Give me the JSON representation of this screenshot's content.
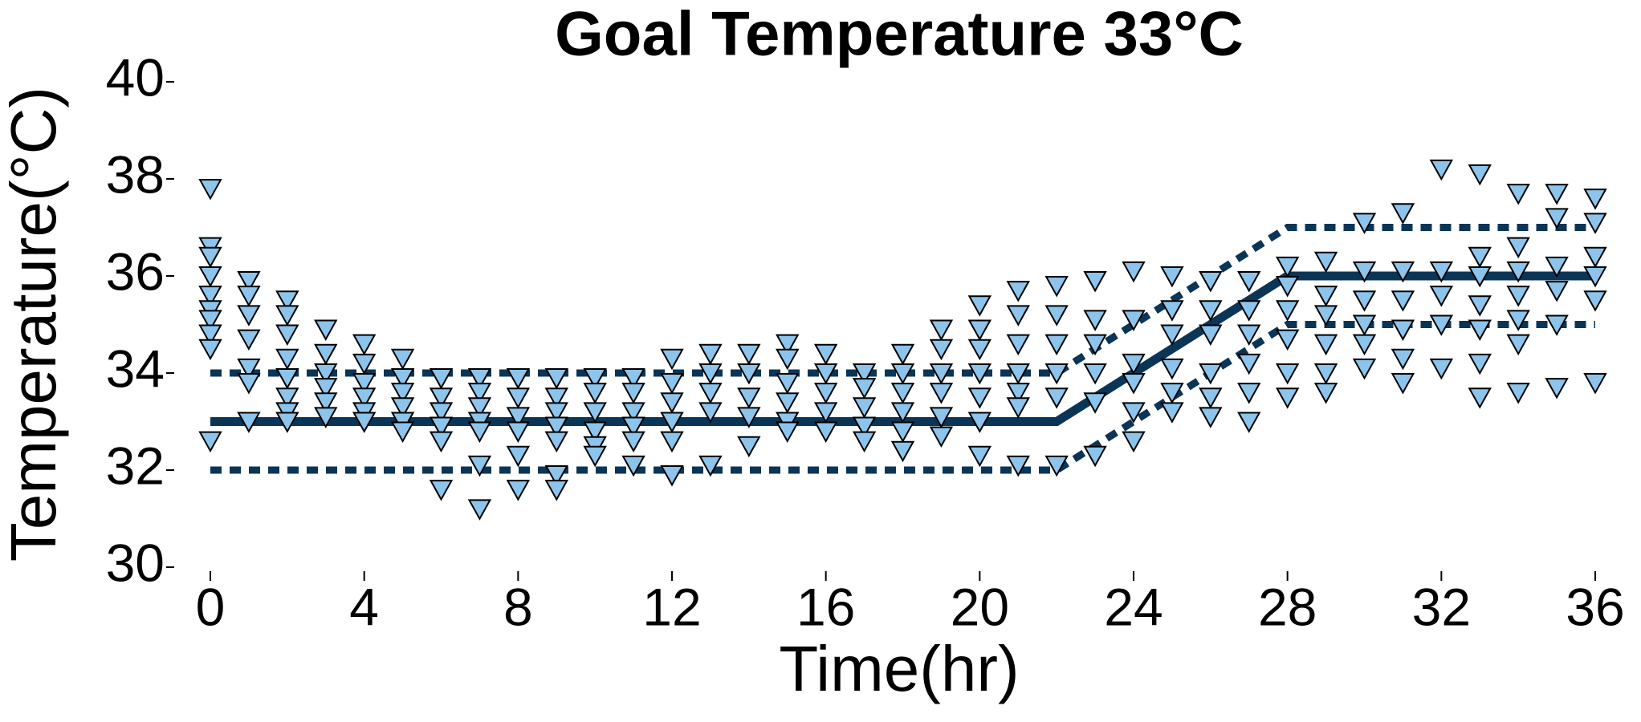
{
  "chart_data": {
    "type": "scatter",
    "title": "Goal Temperature 33°C",
    "x_label": "Time(hr)",
    "y_label": "Temperature(°C)",
    "xlim": [
      0,
      36
    ],
    "ylim": [
      30,
      40
    ],
    "xticks": [
      0,
      4,
      8,
      12,
      16,
      20,
      24,
      28,
      32,
      36
    ],
    "yticks": [
      30,
      32,
      34,
      36,
      38,
      40
    ],
    "grid": false,
    "series": [
      {
        "color": "#0b3556",
        "style": "solid",
        "x": [
          0,
          22,
          28,
          36
        ],
        "values": [
          33,
          33,
          36,
          36
        ]
      },
      {
        "color": "#0b3556",
        "style": "dashed",
        "x": [
          0,
          22,
          28,
          36
        ],
        "values": [
          34,
          34,
          37,
          37
        ]
      },
      {
        "color": "#0b3556",
        "style": "dashed",
        "x": [
          0,
          22,
          28,
          36
        ],
        "values": [
          32,
          32,
          35,
          35
        ]
      },
      {
        "color": "#8cc4ec",
        "marker": "triangle-down",
        "x": [
          0,
          0,
          0,
          0,
          0,
          0,
          0,
          0,
          0,
          0,
          1,
          1,
          1,
          1,
          1,
          1,
          1,
          2,
          2,
          2,
          2,
          2,
          2,
          2,
          2,
          3,
          3,
          3,
          3,
          3,
          3,
          4,
          4,
          4,
          4,
          4,
          4,
          5,
          5,
          5,
          5,
          5,
          5,
          6,
          6,
          6,
          6,
          6,
          6,
          7,
          7,
          7,
          7,
          7,
          7,
          7,
          8,
          8,
          8,
          8,
          8,
          8,
          9,
          9,
          9,
          9,
          9,
          9,
          9,
          10,
          10,
          10,
          10,
          10,
          10,
          11,
          11,
          11,
          11,
          11,
          11,
          12,
          12,
          12,
          12,
          12,
          12,
          13,
          13,
          13,
          13,
          13,
          14,
          14,
          14,
          14,
          14,
          15,
          15,
          15,
          15,
          15,
          15,
          16,
          16,
          16,
          16,
          16,
          17,
          17,
          17,
          17,
          17,
          18,
          18,
          18,
          18,
          18,
          18,
          19,
          19,
          19,
          19,
          19,
          19,
          20,
          20,
          20,
          20,
          20,
          20,
          20,
          21,
          21,
          21,
          21,
          21,
          21,
          21,
          22,
          22,
          22,
          22,
          22,
          22,
          23,
          23,
          23,
          23,
          23,
          23,
          24,
          24,
          24,
          24,
          24,
          24,
          25,
          25,
          25,
          25,
          25,
          25,
          26,
          26,
          26,
          26,
          26,
          26,
          27,
          27,
          27,
          27,
          27,
          27,
          28,
          28,
          28,
          28,
          28,
          28,
          29,
          29,
          29,
          29,
          29,
          29,
          30,
          30,
          30,
          30,
          30,
          30,
          31,
          31,
          31,
          31,
          31,
          31,
          32,
          32,
          32,
          32,
          32,
          33,
          33,
          33,
          33,
          33,
          33,
          33,
          34,
          34,
          34,
          34,
          34,
          34,
          34,
          35,
          35,
          35,
          35,
          35,
          35,
          36,
          36,
          36,
          36,
          36,
          36
        ],
        "values": [
          37.8,
          36.6,
          36.4,
          36.0,
          35.6,
          35.3,
          35.1,
          34.8,
          34.5,
          32.6,
          35.9,
          35.6,
          35.2,
          34.7,
          34.1,
          33.8,
          33.0,
          35.5,
          35.2,
          34.8,
          34.3,
          33.9,
          33.5,
          33.2,
          33.0,
          34.9,
          34.4,
          34.0,
          33.7,
          33.4,
          33.1,
          34.6,
          34.2,
          33.8,
          33.5,
          33.2,
          33.0,
          34.3,
          33.9,
          33.6,
          33.3,
          33.0,
          32.8,
          33.9,
          33.5,
          33.2,
          32.9,
          32.6,
          31.6,
          33.9,
          33.6,
          33.3,
          33.0,
          32.8,
          32.1,
          31.2,
          33.9,
          33.5,
          33.1,
          32.8,
          32.3,
          31.6,
          33.9,
          33.5,
          33.2,
          32.9,
          32.6,
          31.9,
          31.6,
          33.9,
          33.6,
          33.2,
          32.8,
          32.5,
          32.3,
          33.9,
          33.6,
          33.2,
          32.9,
          32.6,
          32.1,
          34.3,
          33.8,
          33.4,
          33.0,
          32.6,
          31.9,
          34.4,
          34.0,
          33.6,
          33.2,
          32.1,
          34.4,
          34.0,
          33.5,
          33.1,
          32.5,
          34.6,
          34.3,
          33.8,
          33.4,
          33.0,
          32.8,
          34.4,
          34.0,
          33.6,
          33.2,
          32.8,
          34.0,
          33.7,
          33.3,
          32.9,
          32.6,
          34.4,
          34.0,
          33.6,
          33.2,
          32.8,
          32.4,
          34.9,
          34.5,
          34.0,
          33.6,
          33.1,
          32.7,
          35.4,
          34.9,
          34.5,
          34.0,
          33.5,
          33.0,
          32.3,
          35.7,
          35.2,
          34.6,
          34.0,
          33.6,
          33.3,
          32.1,
          35.8,
          35.2,
          34.6,
          34.0,
          33.5,
          32.1,
          35.9,
          35.1,
          34.6,
          34.0,
          33.4,
          32.3,
          36.1,
          35.1,
          34.2,
          33.8,
          33.2,
          32.6,
          36.0,
          35.3,
          34.8,
          34.1,
          33.6,
          33.2,
          35.9,
          35.3,
          34.8,
          34.0,
          33.5,
          33.1,
          35.9,
          35.3,
          34.8,
          34.2,
          33.6,
          33.0,
          36.2,
          35.8,
          35.3,
          34.7,
          34.0,
          33.5,
          36.3,
          35.6,
          35.2,
          34.6,
          34.0,
          33.6,
          37.1,
          36.1,
          35.5,
          35.0,
          34.6,
          34.1,
          37.3,
          36.1,
          35.5,
          34.9,
          34.3,
          33.8,
          38.2,
          36.1,
          35.6,
          35.0,
          34.1,
          38.1,
          36.4,
          36.0,
          35.4,
          34.9,
          34.2,
          33.5,
          37.7,
          36.6,
          36.1,
          35.6,
          35.1,
          34.6,
          33.6,
          37.7,
          37.2,
          36.2,
          35.7,
          35.0,
          33.7,
          37.6,
          37.1,
          36.4,
          36.0,
          35.5,
          33.8
        ]
      }
    ]
  }
}
